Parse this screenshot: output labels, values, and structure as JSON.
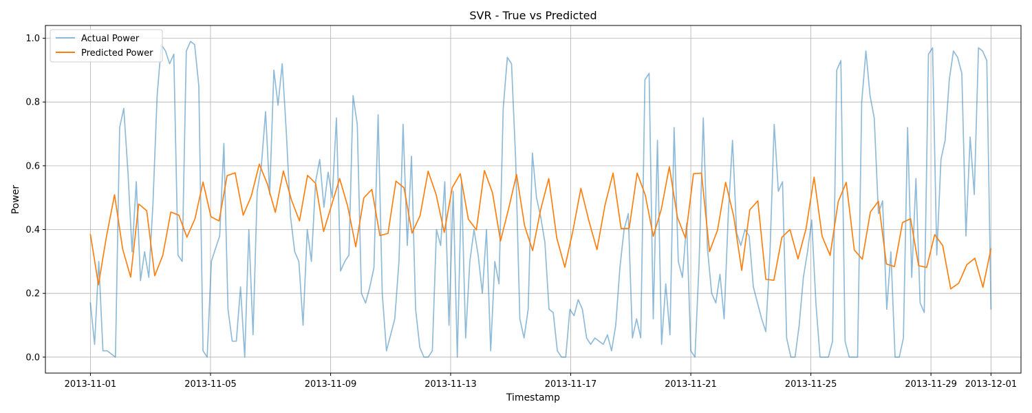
{
  "chart_data": {
    "type": "line",
    "title": "SVR - True vs Predicted",
    "xlabel": "Timestamp",
    "ylabel": "Power",
    "xlim": [
      "2013-10-30T12:00",
      "2013-12-02T00:00"
    ],
    "ylim": [
      -0.05,
      1.04
    ],
    "x_ticks": [
      "2013-11-01",
      "2013-11-05",
      "2013-11-09",
      "2013-11-13",
      "2013-11-17",
      "2013-11-21",
      "2013-11-25",
      "2013-11-29",
      "2013-12-01"
    ],
    "y_ticks": [
      "0.0",
      "0.2",
      "0.4",
      "0.6",
      "0.8",
      "1.0"
    ],
    "grid": true,
    "legend_position": "upper-left",
    "x_start": "2013-11-01T00:00",
    "x_step_hours": 6,
    "series": [
      {
        "name": "Actual Power",
        "color": "#1f77b4",
        "alpha": 0.5,
        "values": [
          0.17,
          0.04,
          0.3,
          0.02,
          0.02,
          0.01,
          0.0,
          0.72,
          0.78,
          0.58,
          0.33,
          0.55,
          0.24,
          0.33,
          0.25,
          0.48,
          0.82,
          0.98,
          0.96,
          0.92,
          0.95,
          0.32,
          0.3,
          0.96,
          0.99,
          0.98,
          0.85,
          0.02,
          0.0,
          0.3,
          0.34,
          0.38,
          0.67,
          0.15,
          0.05,
          0.05,
          0.22,
          0.0,
          0.4,
          0.07,
          0.52,
          0.6,
          0.77,
          0.51,
          0.9,
          0.79,
          0.92,
          0.7,
          0.44,
          0.33,
          0.3,
          0.1,
          0.4,
          0.3,
          0.55,
          0.62,
          0.47,
          0.58,
          0.5,
          0.75,
          0.27,
          0.3,
          0.32,
          0.82,
          0.73,
          0.2,
          0.17,
          0.22,
          0.28,
          0.76,
          0.2,
          0.02,
          0.07,
          0.12,
          0.3,
          0.73,
          0.35,
          0.63,
          0.15,
          0.03,
          0.0,
          0.0,
          0.02,
          0.4,
          0.35,
          0.55,
          0.1,
          0.52,
          0.0,
          0.55,
          0.06,
          0.3,
          0.4,
          0.32,
          0.2,
          0.4,
          0.02,
          0.3,
          0.23,
          0.78,
          0.94,
          0.92,
          0.62,
          0.12,
          0.06,
          0.15,
          0.64,
          0.5,
          0.44,
          0.36,
          0.15,
          0.14,
          0.02,
          0.0,
          0.0,
          0.15,
          0.13,
          0.18,
          0.15,
          0.06,
          0.04,
          0.06,
          0.05,
          0.04,
          0.07,
          0.02,
          0.1,
          0.28,
          0.4,
          0.45,
          0.06,
          0.12,
          0.06,
          0.87,
          0.89,
          0.12,
          0.68,
          0.04,
          0.23,
          0.07,
          0.72,
          0.3,
          0.25,
          0.42,
          0.02,
          0.0,
          0.3,
          0.75,
          0.34,
          0.2,
          0.17,
          0.26,
          0.12,
          0.45,
          0.68,
          0.39,
          0.35,
          0.4,
          0.38,
          0.22,
          0.17,
          0.12,
          0.08,
          0.33,
          0.73,
          0.52,
          0.55,
          0.06,
          0.0,
          0.0,
          0.1,
          0.25,
          0.33,
          0.43,
          0.17,
          0.0,
          0.0,
          0.0,
          0.05,
          0.9,
          0.93,
          0.05,
          0.0,
          0.0,
          0.0,
          0.8,
          0.96,
          0.82,
          0.75,
          0.45,
          0.49,
          0.15,
          0.33,
          0.0,
          0.0,
          0.06,
          0.72,
          0.25,
          0.56,
          0.17,
          0.14,
          0.95,
          0.97,
          0.32,
          0.62,
          0.68,
          0.87,
          0.96,
          0.94,
          0.89,
          0.38,
          0.69,
          0.51,
          0.97,
          0.96,
          0.93,
          0.15
        ],
        "data_labels": []
      },
      {
        "name": "Predicted Power",
        "color": "#ff7f0e",
        "values": [
          0.385,
          0.227,
          0.379,
          0.509,
          0.34,
          0.251,
          0.48,
          0.459,
          0.255,
          0.319,
          0.455,
          0.445,
          0.376,
          0.434,
          0.549,
          0.44,
          0.427,
          0.569,
          0.578,
          0.445,
          0.505,
          0.605,
          0.543,
          0.454,
          0.584,
          0.493,
          0.427,
          0.57,
          0.545,
          0.394,
          0.478,
          0.56,
          0.473,
          0.346,
          0.499,
          0.526,
          0.381,
          0.388,
          0.552,
          0.531,
          0.389,
          0.444,
          0.583,
          0.509,
          0.391,
          0.532,
          0.575,
          0.433,
          0.399,
          0.585,
          0.516,
          0.364,
          0.465,
          0.573,
          0.412,
          0.334,
          0.463,
          0.56,
          0.373,
          0.282,
          0.396,
          0.529,
          0.427,
          0.337,
          0.477,
          0.577,
          0.403,
          0.404,
          0.577,
          0.509,
          0.379,
          0.464,
          0.597,
          0.439,
          0.373,
          0.575,
          0.577,
          0.331,
          0.399,
          0.548,
          0.442,
          0.272,
          0.462,
          0.49,
          0.244,
          0.241,
          0.376,
          0.4,
          0.308,
          0.403,
          0.564,
          0.379,
          0.319,
          0.487,
          0.548,
          0.336,
          0.307,
          0.455,
          0.489,
          0.292,
          0.284,
          0.422,
          0.434,
          0.287,
          0.281,
          0.384,
          0.35,
          0.214,
          0.232,
          0.29,
          0.31,
          0.219,
          0.34
        ]
      }
    ]
  }
}
